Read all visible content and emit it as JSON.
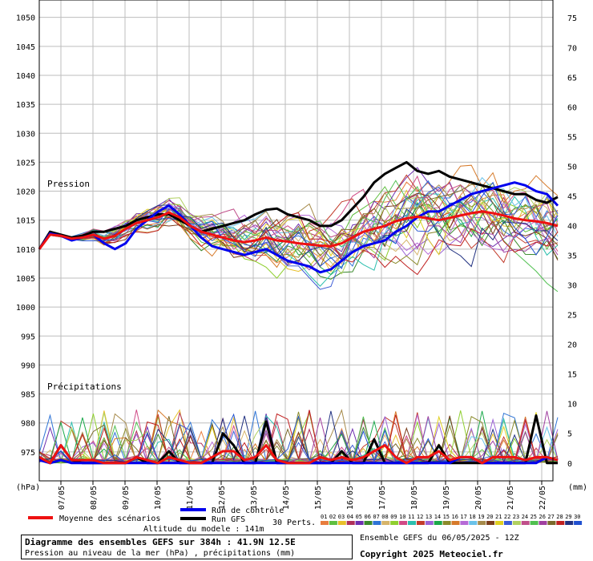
{
  "chart_data": {
    "type": "line",
    "x_dates": [
      "07/05",
      "08/05",
      "09/05",
      "10/05",
      "11/05",
      "12/05",
      "13/05",
      "14/05",
      "15/05",
      "16/05",
      "17/05",
      "18/05",
      "19/05",
      "20/05",
      "21/05",
      "22/05"
    ],
    "pressure_axis": {
      "unit": "(hPa)",
      "ylim": [
        970,
        1053
      ],
      "ticks": [
        975,
        980,
        985,
        990,
        995,
        1000,
        1005,
        1010,
        1015,
        1020,
        1025,
        1030,
        1035,
        1040,
        1045,
        1050
      ]
    },
    "precip_axis": {
      "unit": "(mm)",
      "ylim": [
        -3,
        78
      ],
      "ticks": [
        0,
        5,
        10,
        15,
        20,
        25,
        30,
        35,
        40,
        45,
        50,
        55,
        60,
        65,
        70,
        75
      ]
    },
    "pressure_label": "Pression",
    "precip_label": "Précipitations",
    "grid": true,
    "pressure_series": [
      {
        "name": "Moyenne des scénarios",
        "color": "#ee1111",
        "values": [
          1010,
          1012.5,
          1012.3,
          1011.8,
          1012,
          1012.5,
          1011.8,
          1012.3,
          1013.5,
          1014.5,
          1015,
          1015.5,
          1016.3,
          1015.5,
          1014,
          1013,
          1012.5,
          1012,
          1011.5,
          1011.2,
          1011.5,
          1012,
          1011.5,
          1011.3,
          1011,
          1010.8,
          1010.6,
          1010.5,
          1011,
          1012,
          1013,
          1013.5,
          1014,
          1014.8,
          1015.3,
          1015.6,
          1015.3,
          1015,
          1015.4,
          1015.8,
          1016.2,
          1016.5,
          1016.2,
          1015.8,
          1015.3,
          1015,
          1014.8,
          1014.5,
          1014
        ]
      },
      {
        "name": "Run de contrôle",
        "color": "#0000ee",
        "values": [
          1010,
          1012.7,
          1012.3,
          1011.5,
          1012,
          1012.5,
          1011,
          1010,
          1011,
          1013.5,
          1015,
          1016.5,
          1017.5,
          1016,
          1014,
          1012,
          1010.5,
          1010,
          1009.5,
          1009,
          1009.5,
          1010,
          1009,
          1008,
          1007.5,
          1007,
          1006,
          1006.5,
          1008,
          1009.5,
          1010.5,
          1011,
          1011.5,
          1013,
          1014,
          1015.5,
          1016.5,
          1016.5,
          1017.5,
          1018.5,
          1019.5,
          1020,
          1020.5,
          1021,
          1021.5,
          1021,
          1020,
          1019.5,
          1017.5
        ]
      },
      {
        "name": "Run GFS",
        "color": "#000000",
        "values": [
          1010,
          1013,
          1012.5,
          1012,
          1012.3,
          1013,
          1013,
          1013.5,
          1014,
          1015,
          1015.5,
          1016,
          1016,
          1015,
          1014,
          1013,
          1013.5,
          1014,
          1014.5,
          1015,
          1016,
          1016.8,
          1017,
          1016,
          1015.5,
          1015,
          1014,
          1014,
          1015,
          1017,
          1019,
          1021.5,
          1023,
          1024,
          1025,
          1023.5,
          1023,
          1023.5,
          1022.5,
          1022,
          1021.5,
          1021,
          1020.5,
          1020,
          1019.5,
          1019.5,
          1018.5,
          1018,
          1019
        ]
      }
    ],
    "precip_series": [
      {
        "name": "Moyenne des scénarios",
        "color": "#ee1111",
        "values": [
          1,
          0,
          3,
          0.5,
          0.5,
          0.5,
          0,
          0,
          0,
          1,
          0.5,
          0,
          1,
          0.5,
          0,
          0,
          1,
          2,
          2,
          0.5,
          1,
          3,
          0.5,
          0,
          0,
          0,
          1,
          0.5,
          1,
          0.5,
          1,
          2,
          3,
          1,
          0,
          1,
          1,
          2,
          0.5,
          1,
          1,
          0,
          1,
          1,
          1,
          0.5,
          1,
          1,
          0.5
        ]
      },
      {
        "name": "Run de contrôle",
        "color": "#0000ee",
        "values": [
          0.5,
          0,
          0.5,
          0,
          0,
          0,
          0,
          0,
          0,
          0,
          0,
          0,
          0,
          0,
          0,
          0,
          0,
          0,
          0,
          0,
          0,
          0,
          0,
          0,
          0,
          0,
          0,
          0,
          0,
          0,
          0,
          0,
          0,
          0,
          0,
          0,
          0,
          0,
          0,
          1,
          1,
          0,
          0,
          0,
          0,
          0,
          0,
          1,
          0.5
        ]
      },
      {
        "name": "Run GFS",
        "color": "#000000",
        "values": [
          1,
          0,
          3,
          0.5,
          0,
          0,
          0,
          0,
          0,
          1,
          0,
          0,
          2,
          0,
          0,
          0,
          0,
          5,
          3,
          0,
          0,
          7,
          0,
          0,
          0,
          0,
          0,
          0,
          2,
          0,
          0,
          4,
          0,
          0,
          0,
          0,
          0,
          3,
          0,
          0,
          0,
          0,
          0,
          0,
          0,
          0,
          8,
          0,
          0
        ]
      }
    ],
    "perturbation_count": "30 Perts.",
    "member_labels": [
      "01",
      "02",
      "03",
      "04",
      "05",
      "06",
      "07",
      "08",
      "09",
      "10",
      "11",
      "12",
      "13",
      "14",
      "15",
      "16",
      "17",
      "18",
      "19",
      "20",
      "21",
      "22",
      "23",
      "24",
      "25",
      "26",
      "27",
      "28",
      "29",
      "30"
    ],
    "member_colors": [
      "#e87d3e",
      "#5fbf3f",
      "#e8c02a",
      "#b0305a",
      "#6e2fb0",
      "#3a8a2c",
      "#2e74d6",
      "#d6b46a",
      "#8fcf2f",
      "#d04a86",
      "#2cbfae",
      "#c23b2b",
      "#9b62d6",
      "#1aa84a",
      "#8a8a2a",
      "#d67a2a",
      "#b66ad6",
      "#6ac2e8",
      "#a68a4a",
      "#7a3c1a",
      "#e0d020",
      "#3a5ad6",
      "#b0d060",
      "#c0508a",
      "#50c050",
      "#a040a0",
      "#7a6a2a",
      "#c02020",
      "#203080",
      "#2050d0"
    ]
  },
  "legend": {
    "moyenne": "Moyenne des scénarios",
    "controle": "Run de contrôle",
    "gfs": "Run GFS",
    "altitude": "Altitude du modele : 141m"
  },
  "info": {
    "title": "Diagramme des ensembles GEFS sur 384h : 41.9N 12.5E",
    "subtitle": "Pression au niveau de la mer (hPa) , précipitations (mm)",
    "ensemble_run": "Ensemble GEFS du 06/05/2025 - 12Z",
    "copyright": "Copyright 2025 Meteociel.fr"
  }
}
